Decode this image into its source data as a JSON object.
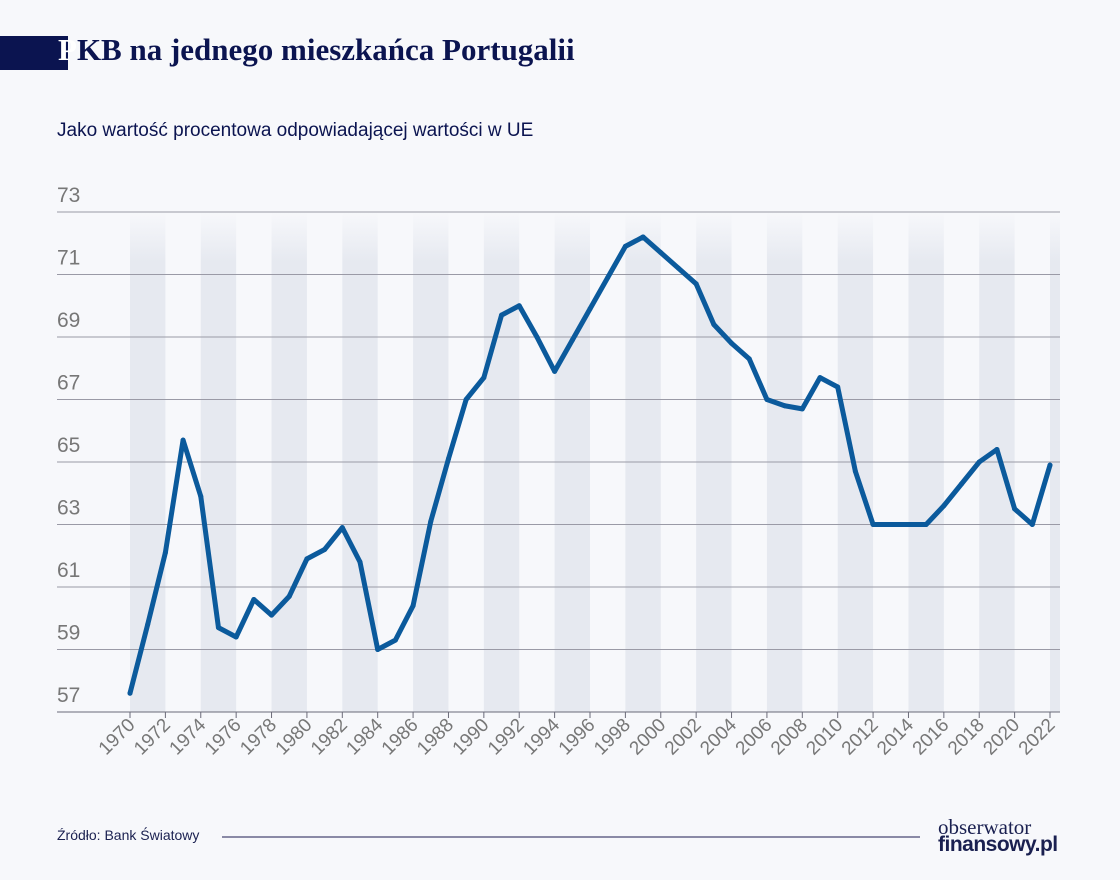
{
  "title_first_letter": "P",
  "title_rest": "KB na jednego mieszkańca Portugalii",
  "subtitle": "Jako wartość procentowa odpowiadającej wartości w UE",
  "source": "Źródło: Bank Światowy",
  "logo": {
    "line1": "obserwator",
    "line2": "finansowy.pl"
  },
  "colors": {
    "line": "#0b5a9c",
    "title": "#0b1450",
    "band": "#e6e9f0",
    "grid": "#9a9aa6"
  },
  "chart_data": {
    "type": "line",
    "title": "PKB na jednego mieszkańca Portugalii",
    "subtitle": "Jako wartość procentowa odpowiadającej wartości w UE",
    "xlabel": "",
    "ylabel": "",
    "ylim": [
      57,
      73
    ],
    "xlim": [
      1970,
      2022
    ],
    "yticks": [
      57,
      59,
      61,
      63,
      65,
      67,
      69,
      71,
      73
    ],
    "xticks": [
      1970,
      1972,
      1974,
      1976,
      1978,
      1980,
      1982,
      1984,
      1986,
      1988,
      1990,
      1992,
      1994,
      1996,
      1998,
      2000,
      2002,
      2004,
      2006,
      2008,
      2010,
      2012,
      2014,
      2016,
      2018,
      2020,
      2022
    ],
    "grid": "horizontal",
    "x": [
      1970,
      1971,
      1972,
      1973,
      1974,
      1975,
      1976,
      1977,
      1978,
      1979,
      1980,
      1981,
      1982,
      1983,
      1984,
      1985,
      1986,
      1987,
      1988,
      1989,
      1990,
      1991,
      1992,
      1993,
      1994,
      1995,
      1996,
      1997,
      1998,
      1999,
      2000,
      2001,
      2002,
      2003,
      2004,
      2005,
      2006,
      2007,
      2008,
      2009,
      2010,
      2011,
      2012,
      2013,
      2014,
      2015,
      2016,
      2017,
      2018,
      2019,
      2020,
      2021,
      2022
    ],
    "values": [
      57.6,
      59.8,
      62.1,
      65.7,
      63.9,
      59.7,
      59.4,
      60.6,
      60.1,
      60.7,
      61.9,
      62.2,
      62.9,
      61.8,
      59.0,
      59.3,
      60.4,
      63.1,
      65.1,
      67.0,
      67.7,
      69.7,
      70.0,
      69.0,
      67.9,
      68.9,
      69.9,
      70.9,
      71.9,
      72.2,
      71.7,
      71.2,
      70.7,
      69.4,
      68.8,
      68.3,
      67.0,
      66.8,
      66.7,
      67.7,
      67.4,
      64.7,
      63.0,
      63.0,
      63.0,
      63.0,
      63.6,
      64.3,
      65.0,
      65.4,
      63.5,
      63.0,
      64.9
    ]
  }
}
